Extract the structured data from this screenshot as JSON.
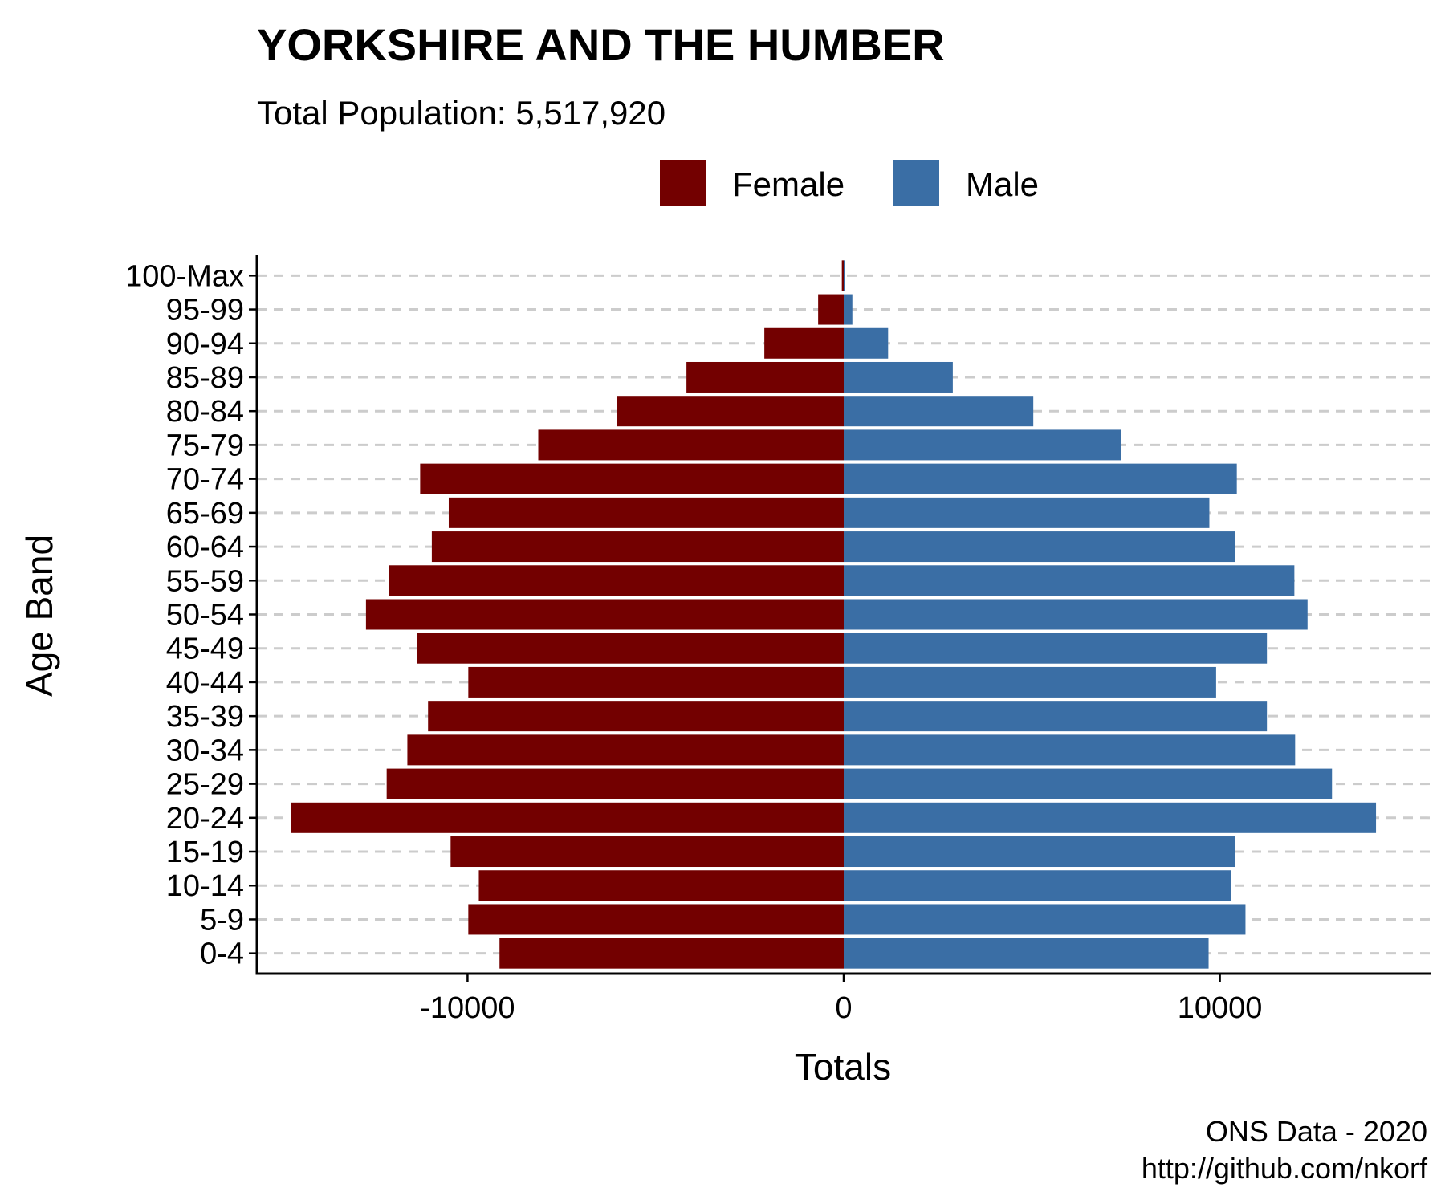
{
  "chart_data": {
    "type": "bar",
    "orientation": "horizontal",
    "title": "YORKSHIRE AND THE HUMBER",
    "subtitle": "Total Population:  5,517,920",
    "xlabel": "Totals",
    "ylabel": "Age Band",
    "caption": [
      "ONS Data - 2020",
      "http://github.com/nkorf"
    ],
    "categories": [
      "0-4",
      "5-9",
      "10-14",
      "15-19",
      "20-24",
      "25-29",
      "30-34",
      "35-39",
      "40-44",
      "45-49",
      "50-54",
      "55-59",
      "60-64",
      "65-69",
      "70-74",
      "75-79",
      "80-84",
      "85-89",
      "90-94",
      "95-99",
      "100-Max"
    ],
    "series": [
      {
        "name": "Female",
        "color": "#730000",
        "values": [
          -9150,
          -9980,
          -9700,
          -10450,
          -14700,
          -12150,
          -11600,
          -11050,
          -9980,
          -11350,
          -12700,
          -12100,
          -10950,
          -10500,
          -11260,
          -8120,
          -6020,
          -4180,
          -2110,
          -680,
          -50
        ]
      },
      {
        "name": "Male",
        "color": "#3a6ea5",
        "values": [
          9700,
          10680,
          10300,
          10400,
          14150,
          12980,
          12000,
          11250,
          9900,
          11250,
          12330,
          11980,
          10400,
          9720,
          10450,
          7370,
          5040,
          2900,
          1180,
          230,
          20
        ]
      }
    ],
    "xlim": [
      -15600,
      15600
    ],
    "xticks": [
      -10000,
      0,
      10000
    ],
    "xtick_labels": [
      "-10000",
      "0",
      "10000"
    ],
    "legend_position": "top",
    "grid": "dashed horizontal major lines"
  }
}
